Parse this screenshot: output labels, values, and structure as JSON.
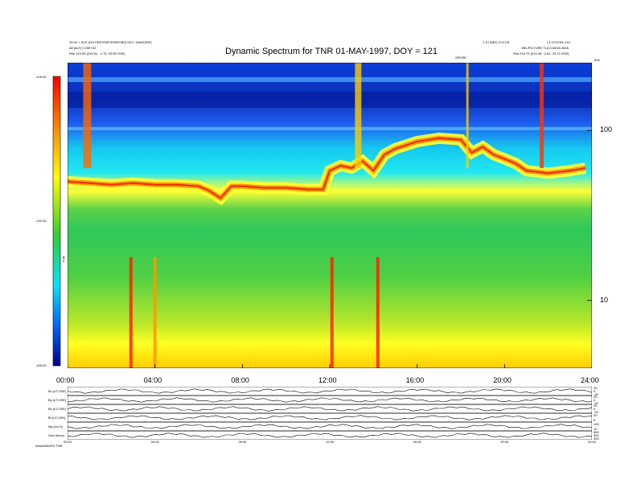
{
  "header": {
    "title": "Dynamic Spectrum for TNR 01-MAY-1997, DOY = 121",
    "left_line1": "15:00 = SCE (DOY/REV/WP/RSR/OBS) KEY: 4/WIG/RSC",
    "left_line2": "Alt [ALT] 2.40E+02",
    "left_line3": "Rse 215.55 (215.51, -1.75, 23.95 GSE)",
    "right_line1": "1.10 WED 27/CO5",
    "right_line2": "L3 27/COM 4.01",
    "right_line3": "XBL/PICTURE TLA 3.5/205.2635",
    "right_line4": "Rse 215.79 (214.45, -1.61, 23.70 GSE)",
    "mid_label": "GRVEE",
    "freq_unit": "kHz"
  },
  "colorbar": {
    "ticks": [
      "-125.00",
      "-140.00",
      "-155.00"
    ],
    "label": "TNR"
  },
  "chart_data": {
    "type": "heatmap",
    "title": "Dynamic Spectrum for TNR 01-MAY-1997, DOY = 121",
    "x_ticks": [
      "00:00",
      "04:00",
      "08:00",
      "12:00",
      "16:00",
      "20:00",
      "24:00"
    ],
    "xlim": [
      0,
      24
    ],
    "y_scale": "log",
    "y_ticks": [
      "100",
      "10"
    ],
    "ylim": [
      4,
      250
    ],
    "colorbar_range": [
      -155,
      -125
    ],
    "series": [
      {
        "values": [
          [
            0,
            50
          ],
          [
            1,
            49
          ],
          [
            2,
            48
          ],
          [
            3,
            49
          ],
          [
            4,
            48
          ],
          [
            5,
            48
          ],
          [
            6,
            47
          ],
          [
            6.5,
            44
          ],
          [
            7,
            40
          ],
          [
            7.5,
            47
          ],
          [
            8,
            47
          ],
          [
            9,
            46
          ],
          [
            10,
            46
          ],
          [
            11,
            45
          ],
          [
            11.7,
            45
          ],
          [
            12,
            58
          ],
          [
            12.5,
            62
          ],
          [
            13,
            60
          ],
          [
            13.5,
            66
          ],
          [
            14,
            58
          ],
          [
            14.5,
            72
          ],
          [
            15,
            78
          ],
          [
            16,
            86
          ],
          [
            17,
            90
          ],
          [
            18,
            88
          ],
          [
            18.5,
            74
          ],
          [
            19,
            80
          ],
          [
            19.5,
            72
          ],
          [
            20,
            68
          ],
          [
            20.5,
            64
          ],
          [
            21,
            58
          ],
          [
            22,
            56
          ],
          [
            23,
            58
          ],
          [
            23.7,
            60
          ]
        ]
      }
    ],
    "lower_panels": [
      {
        "label": "Bx (nT,GSE)",
        "right_ticks": [
          "20",
          "0",
          "-20"
        ]
      },
      {
        "label": "By (nT,GSE)",
        "right_ticks": [
          "20",
          "0",
          "-20"
        ]
      },
      {
        "label": "Bz (nT,GSE)",
        "right_ticks": [
          "20",
          "0",
          "-20"
        ]
      },
      {
        "label": "Bt (nT,GSE)",
        "right_ticks": [
          "20",
          "0"
        ]
      },
      {
        "label": "Np (cm-3)",
        "right_ticks": [
          "100",
          "10"
        ]
      },
      {
        "label": "Vsw (km/s)",
        "right_ticks": [
          "800",
          "500",
          "300"
        ]
      }
    ],
    "lower_x_ticks": [
      "00:00",
      "04:00",
      "08:00",
      "12:00",
      "16:00",
      "20:00",
      "24:00"
    ],
    "footer_label": "Wind/WAVES TNR"
  }
}
